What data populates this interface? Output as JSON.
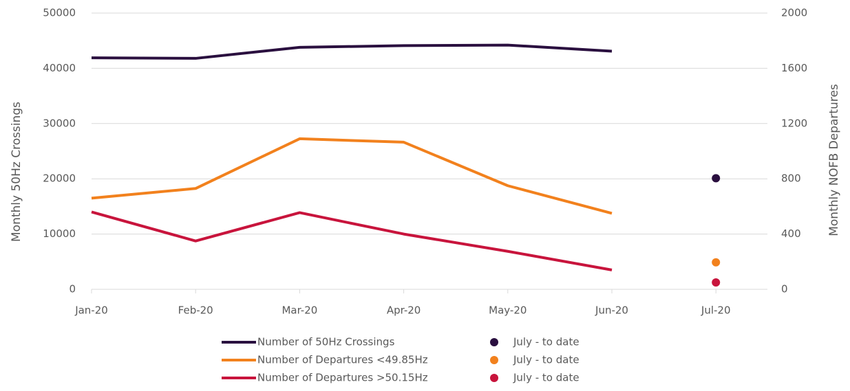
{
  "chart_data": {
    "type": "line",
    "y_label": "Monthly 50Hz Crossings",
    "y2_label": "Monthly NOFB Departures",
    "categories": [
      "Jan-20",
      "Feb-20",
      "Mar-20",
      "Apr-20",
      "May-20",
      "Jun-20",
      "Jul-20"
    ],
    "ylim": [
      0,
      50000
    ],
    "yticks": [
      0,
      10000,
      20000,
      30000,
      40000,
      50000
    ],
    "y2lim": [
      0,
      2000
    ],
    "y2ticks": [
      0,
      400,
      800,
      1200,
      1600,
      2000
    ],
    "grid": true,
    "legend": "bottom",
    "series": [
      {
        "name": "Number of 50Hz Crossings",
        "color": "#2a0f3f",
        "style": "line",
        "values": [
          41900,
          41800,
          43800,
          44100,
          44200,
          43100,
          null
        ]
      },
      {
        "name": "Number of Departures <49.85Hz",
        "color": "#f2811d",
        "style": "line",
        "axis": "y2",
        "values": [
          660,
          730,
          1090,
          1065,
          750,
          550,
          null
        ]
      },
      {
        "name": "Number of Departures >50.15Hz",
        "color": "#c8143c",
        "style": "line",
        "axis": "y2",
        "values": [
          560,
          350,
          555,
          400,
          275,
          140,
          null
        ]
      },
      {
        "name": "July - to date",
        "color": "#2a0f3f",
        "style": "marker",
        "values": [
          null,
          null,
          null,
          null,
          null,
          null,
          20100
        ]
      },
      {
        "name": "July - to date",
        "color": "#f2811d",
        "style": "marker",
        "axis": "y2",
        "values": [
          null,
          null,
          null,
          null,
          null,
          null,
          195
        ]
      },
      {
        "name": "July - to date",
        "color": "#c8143c",
        "style": "marker",
        "axis": "y2",
        "values": [
          null,
          null,
          null,
          null,
          null,
          null,
          50
        ]
      }
    ]
  }
}
